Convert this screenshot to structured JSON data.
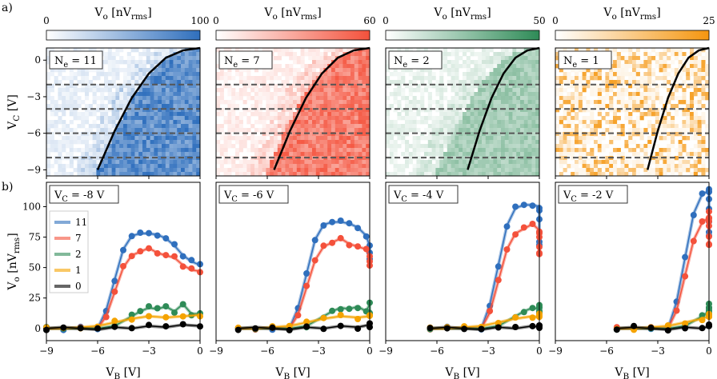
{
  "panel_labels": [
    "a)",
    "b)"
  ],
  "colorbar_label": "V_o [nV_rms]",
  "top_panels": [
    {
      "ne_label": "N_e = 11",
      "cmap": "#2f6fbd",
      "cmax": 100,
      "cmin": 0
    },
    {
      "ne_label": "N_e = 7",
      "cmap": "#f4513b",
      "cmax": 60,
      "cmin": 0
    },
    {
      "ne_label": "N_e = 2",
      "cmap": "#2e8b57",
      "cmax": 50,
      "cmin": 0
    },
    {
      "ne_label": "N_e = 1",
      "cmap": "#f5960f",
      "cmax": 25,
      "cmin": 0
    }
  ],
  "bottom_panels": [
    {
      "vc_label": "V_C = -8 V"
    },
    {
      "vc_label": "V_C = -6 V"
    },
    {
      "vc_label": "V_C = -4 V"
    },
    {
      "vc_label": "V_C = -2 V"
    }
  ],
  "legend": [
    {
      "name": "11",
      "color": "#2f6fbd"
    },
    {
      "name": "7",
      "color": "#f4513b"
    },
    {
      "name": "2",
      "color": "#2e8b57"
    },
    {
      "name": "1",
      "color": "#f5a300"
    },
    {
      "name": "0",
      "color": "#000000"
    }
  ],
  "axes": {
    "top_ylabel": "V_C [V]",
    "bottom_ylabel": "V_o [nV_rms]",
    "xlabel": "V_B [V]",
    "xticks": [
      "−9",
      "−6",
      "−3",
      "0"
    ],
    "top_yticks": [
      "0",
      "−3",
      "−6",
      "−9"
    ],
    "bottom_yticks": [
      "0",
      "25",
      "50",
      "75",
      "100"
    ]
  },
  "chart_data": [
    {
      "type": "heatmap",
      "x_range": [
        -9,
        0
      ],
      "y_range": [
        -9.5,
        1
      ],
      "dashed_lines_y": [
        -2,
        -4,
        -6,
        -8
      ],
      "boundary_curve": {
        "x": [
          -6.0,
          -5.0,
          -4.0,
          -3.0,
          -2.0,
          -1.0,
          0.0
        ],
        "y": [
          -9,
          -5.8,
          -3.1,
          -1.1,
          0.2,
          0.8,
          1.0
        ]
      }
    },
    {
      "type": "line",
      "x_range": [
        -9,
        0
      ],
      "y_range": [
        -10,
        120
      ],
      "series": [
        {
          "name": "11",
          "x": [
            -9,
            -8,
            -7,
            -6,
            -5.5,
            -5,
            -4.5,
            -4,
            -3.5,
            -3,
            -2.5,
            -2,
            -1.5,
            -1,
            -0.5,
            0
          ],
          "y": [
            0,
            0,
            0,
            0,
            15,
            40,
            65,
            76,
            78,
            78,
            77,
            74,
            68,
            60,
            55,
            52
          ]
        },
        {
          "name": "7",
          "x": [
            -9,
            -8,
            -7,
            -6,
            -5.5,
            -5,
            -4.5,
            -4,
            -3.5,
            -3,
            -2.5,
            -2,
            -1.5,
            -1,
            -0.5,
            0
          ],
          "y": [
            0,
            0,
            0,
            0,
            10,
            30,
            50,
            60,
            63,
            66,
            62,
            60,
            58,
            52,
            48,
            47
          ]
        },
        {
          "name": "2",
          "x": [
            -9,
            -8,
            -7,
            -6,
            -5,
            -4,
            -3.5,
            -3,
            -2.5,
            -2,
            -1.5,
            -1,
            -0.5,
            0
          ],
          "y": [
            0,
            0,
            0,
            0,
            2,
            10,
            14,
            17,
            16,
            18,
            14,
            20,
            12,
            12
          ]
        },
        {
          "name": "1",
          "x": [
            -9,
            -8,
            -7,
            -6,
            -5,
            -4,
            -3,
            -2,
            -1,
            0
          ],
          "y": [
            0,
            0,
            1,
            2,
            5,
            8,
            10,
            9,
            10,
            11
          ]
        },
        {
          "name": "0",
          "x": [
            -9,
            -8,
            -7,
            -6,
            -5,
            -4,
            -3,
            -2,
            -1,
            0
          ],
          "y": [
            0,
            1,
            0,
            -1,
            1,
            0,
            2,
            1,
            3,
            2
          ]
        }
      ]
    }
  ]
}
